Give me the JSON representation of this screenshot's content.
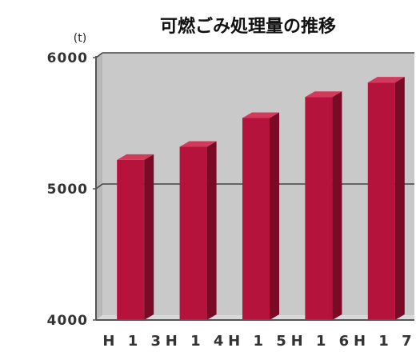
{
  "chart_data": {
    "type": "bar",
    "title": "可燃ごみ処理量の推移",
    "unit_label": "(t)",
    "categories": [
      "H13",
      "H14",
      "H15",
      "H16",
      "H17"
    ],
    "tick_labels": [
      "H 1 3",
      "H 1 4",
      "H 1 5",
      "H 1 6",
      "H 1 7"
    ],
    "values": [
      5220,
      5320,
      5540,
      5700,
      5810
    ],
    "ylim": [
      4000,
      6000
    ],
    "yticks": [
      4000,
      5000,
      6000
    ],
    "ytick_labels": [
      "4000",
      "5000",
      "6000"
    ],
    "grid": true,
    "legend": "none",
    "colors": {
      "bar_front": "#b5123c",
      "bar_side": "#7a0a26",
      "bar_top": "#d23a5c",
      "plot_background": "#c9c9c9",
      "plot_wall_side": "#b8b8b8",
      "floor": "#d9d9d9",
      "gridline": "#444444",
      "axis": "#555555"
    }
  }
}
